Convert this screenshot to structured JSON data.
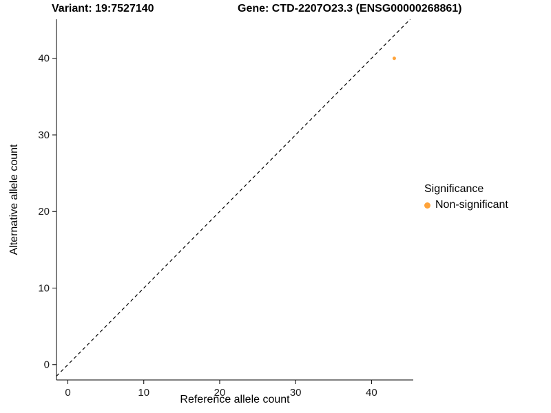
{
  "chart_data": {
    "type": "scatter",
    "title_left": "Variant: 19:7527140",
    "title_right": "Gene: CTD-2207O23.3 (ENSG00000268861)",
    "xlabel": "Reference allele count",
    "ylabel": "Alternative allele count",
    "xlim": [
      -1.5,
      45.5
    ],
    "ylim": [
      -2,
      45.1
    ],
    "xticks": [
      0,
      10,
      20,
      30,
      40
    ],
    "yticks": [
      0,
      10,
      20,
      30,
      40
    ],
    "grid": false,
    "points": [
      {
        "x": 43,
        "y": 40,
        "series": "Non-significant"
      }
    ],
    "identity_line": {
      "style": "dashed",
      "color": "#000000",
      "equation": "y = x"
    },
    "legend": {
      "title": "Significance",
      "position": "right",
      "entries": [
        {
          "label": "Non-significant",
          "color": "#FFA33A"
        }
      ]
    },
    "colors": {
      "point": "#FFA33A",
      "axis": "#000000",
      "tick_text": "#1a1a1a",
      "background": "#FFFFFF"
    }
  }
}
